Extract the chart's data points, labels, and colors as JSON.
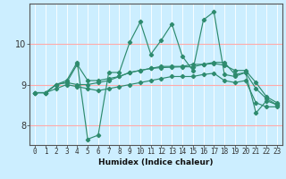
{
  "xlabel": "Humidex (Indice chaleur)",
  "bg_color": "#cceeff",
  "grid_color": "#ffffff",
  "hgrid_color": "#ffaaaa",
  "line_color": "#2e8b6e",
  "xlim": [
    -0.5,
    23.5
  ],
  "ylim": [
    7.5,
    11.0
  ],
  "yticks": [
    8,
    9,
    10
  ],
  "xticks": [
    0,
    1,
    2,
    3,
    4,
    5,
    6,
    7,
    8,
    9,
    10,
    11,
    12,
    13,
    14,
    15,
    16,
    17,
    18,
    19,
    20,
    21,
    22,
    23
  ],
  "series": [
    [
      8.8,
      8.8,
      9.0,
      9.1,
      9.55,
      7.65,
      7.75,
      9.3,
      9.3,
      10.05,
      10.55,
      9.75,
      10.1,
      10.5,
      9.7,
      9.35,
      10.6,
      10.8,
      9.25,
      9.2,
      9.3,
      8.3,
      8.6,
      8.5
    ],
    [
      8.8,
      8.8,
      9.0,
      9.05,
      9.5,
      9.1,
      9.1,
      9.15,
      9.2,
      9.3,
      9.35,
      9.4,
      9.45,
      9.45,
      9.45,
      9.5,
      9.5,
      9.55,
      9.55,
      9.25,
      9.3,
      8.9,
      8.65,
      8.5
    ],
    [
      8.8,
      8.8,
      9.0,
      9.05,
      9.0,
      9.0,
      9.05,
      9.1,
      9.2,
      9.3,
      9.35,
      9.4,
      9.42,
      9.43,
      9.44,
      9.44,
      9.5,
      9.52,
      9.48,
      9.35,
      9.35,
      9.05,
      8.7,
      8.55
    ],
    [
      8.8,
      8.8,
      8.9,
      9.0,
      8.95,
      8.9,
      8.85,
      8.9,
      8.95,
      9.0,
      9.05,
      9.1,
      9.15,
      9.2,
      9.2,
      9.2,
      9.25,
      9.28,
      9.1,
      9.05,
      9.1,
      8.55,
      8.45,
      8.45
    ]
  ]
}
